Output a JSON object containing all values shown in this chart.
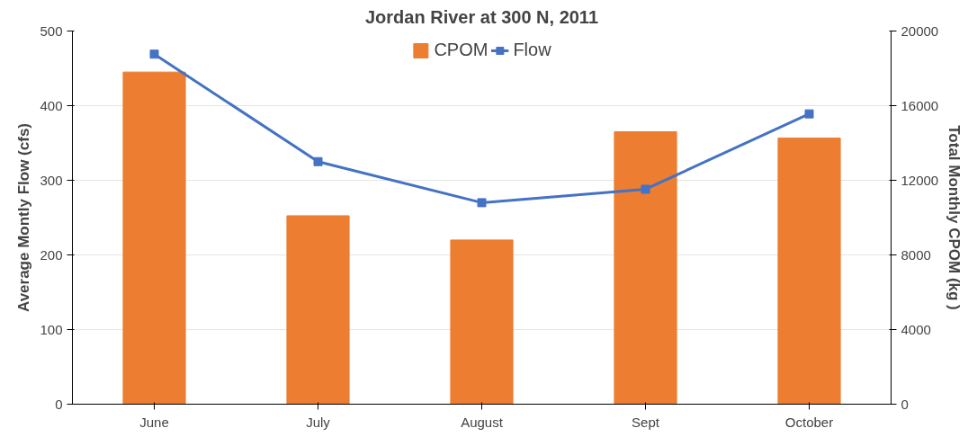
{
  "chart_data": {
    "type": "bar",
    "title": "Jordan River at 300 N, 2011",
    "ylabel": "Average Montly Flow (cfs)",
    "y2label": "Total Monthly CPOM (kg )",
    "categories": [
      "June",
      "July",
      "August",
      "Sept",
      "October"
    ],
    "series": [
      {
        "name": "CPOM",
        "axis": "y2",
        "color": "#ed7d31",
        "values": [
          17800,
          10100,
          8800,
          14600,
          14260
        ]
      },
      {
        "name": "Flow",
        "type": "line",
        "color": "#4472c4",
        "marker": "square",
        "values": [
          469,
          325,
          270,
          288,
          389
        ]
      }
    ],
    "ylim": [
      0,
      500
    ],
    "yticks": [
      0,
      100,
      200,
      300,
      400,
      500
    ],
    "y2lim": [
      0,
      20000
    ],
    "y2ticks": [
      0,
      4000,
      8000,
      12000,
      16000,
      20000
    ],
    "grid": "y",
    "legend": "top"
  }
}
